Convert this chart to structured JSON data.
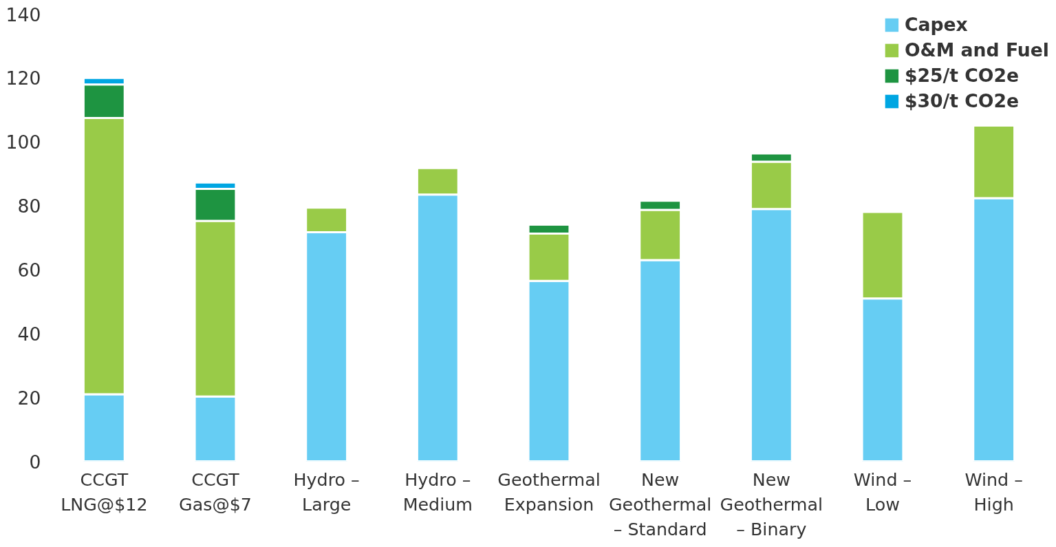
{
  "chart_data": {
    "type": "bar",
    "stacked": true,
    "categories": [
      "CCGT\nLNG@$12",
      "CCGT\nGas@$7",
      "Hydro –\nLarge",
      "Hydro –\nMedium",
      "Geothermal\nExpansion",
      "New\nGeothermal\n– Standard",
      "New\nGeothermal\n– Binary",
      "Wind –\nLow",
      "Wind –\nHigh"
    ],
    "series": [
      {
        "name": "Capex",
        "color": "#66cdf3",
        "values": [
          21,
          20.3,
          71.7,
          83.5,
          56.5,
          63,
          79,
          51,
          82.4
        ]
      },
      {
        "name": "O&M and Fuel",
        "color": "#99cb48",
        "values": [
          86.5,
          55,
          7.7,
          8.3,
          14.8,
          15.7,
          14.8,
          27.1,
          22.7
        ]
      },
      {
        "name": "$25/t CO2e",
        "color": "#1e9441",
        "values": [
          10.5,
          10,
          null,
          null,
          2.8,
          2.9,
          2.6,
          null,
          null
        ]
      },
      {
        "name": "$30/t CO2e",
        "color": "#00a6e2",
        "values": [
          2,
          2,
          null,
          null,
          null,
          null,
          null,
          null,
          null
        ]
      }
    ],
    "ylim": [
      0,
      140
    ],
    "yticks": [
      0,
      20,
      40,
      60,
      80,
      100,
      120,
      140
    ],
    "grid": false,
    "legend": "top right"
  }
}
